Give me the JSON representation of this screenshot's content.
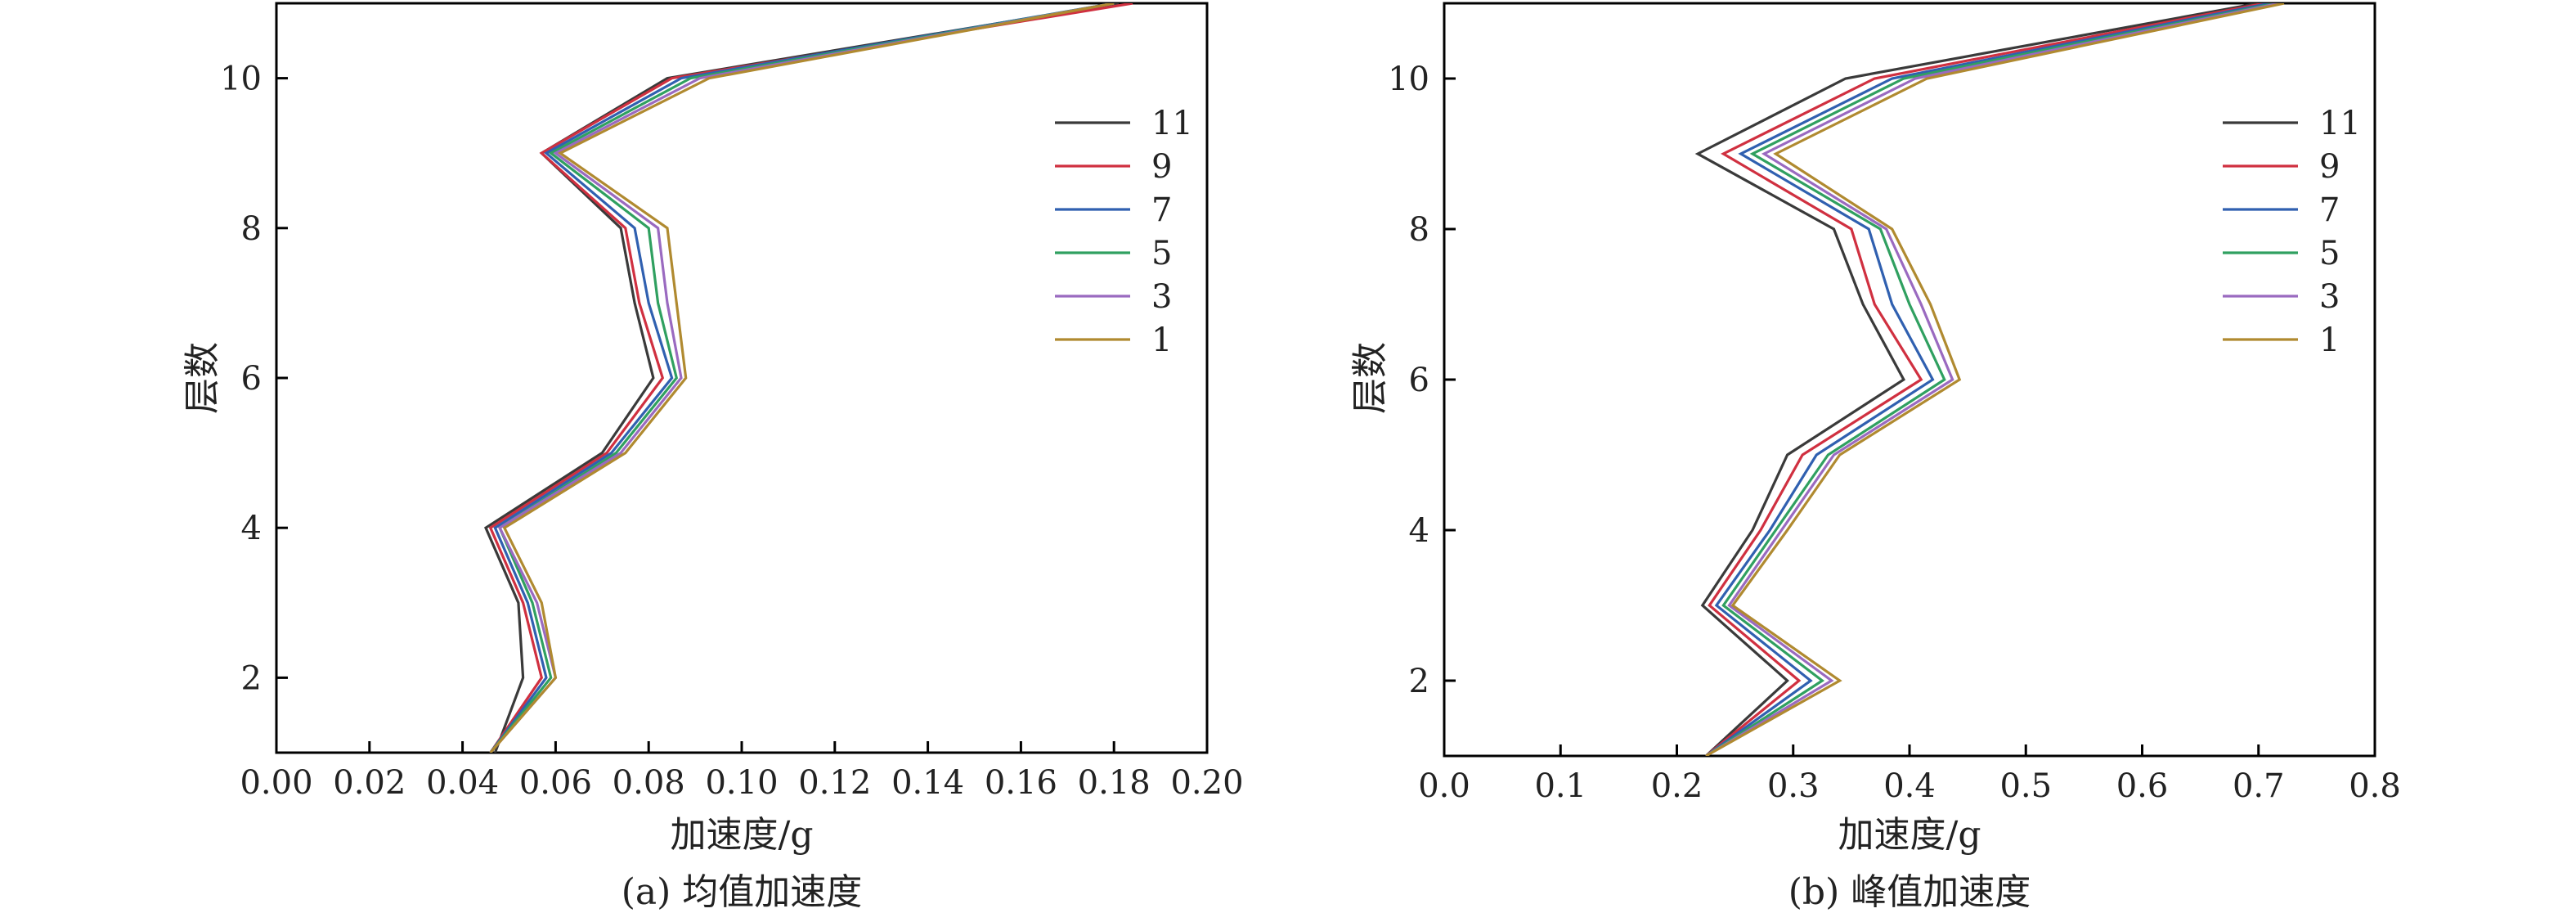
{
  "chart_data": [
    {
      "type": "line",
      "caption": "(a) 均值加速度",
      "xlabel": "加速度/g",
      "ylabel": "层数",
      "xlim": [
        0,
        0.2
      ],
      "ylim": [
        1,
        11
      ],
      "xticks": [
        0.0,
        0.02,
        0.04,
        0.06,
        0.08,
        0.1,
        0.12,
        0.14,
        0.16,
        0.18,
        0.2
      ],
      "yticks": [
        2,
        4,
        6,
        8,
        10
      ],
      "legend_position": "right",
      "floors": [
        1,
        2,
        3,
        4,
        5,
        6,
        7,
        8,
        9,
        10,
        11
      ],
      "series": [
        {
          "name": "11",
          "color": "#3a3a3a",
          "values": [
            0.047,
            0.053,
            0.052,
            0.045,
            0.07,
            0.081,
            0.077,
            0.074,
            0.057,
            0.084,
            0.181
          ]
        },
        {
          "name": "9",
          "color": "#d03040",
          "values": [
            0.046,
            0.057,
            0.053,
            0.046,
            0.071,
            0.083,
            0.078,
            0.075,
            0.057,
            0.085,
            0.184
          ]
        },
        {
          "name": "7",
          "color": "#3060b0",
          "values": [
            0.046,
            0.058,
            0.054,
            0.047,
            0.072,
            0.085,
            0.08,
            0.077,
            0.058,
            0.087,
            0.18
          ]
        },
        {
          "name": "5",
          "color": "#30a060",
          "values": [
            0.046,
            0.059,
            0.055,
            0.048,
            0.073,
            0.086,
            0.082,
            0.08,
            0.059,
            0.089,
            0.18
          ]
        },
        {
          "name": "3",
          "color": "#9a6ac0",
          "values": [
            0.046,
            0.06,
            0.056,
            0.048,
            0.074,
            0.087,
            0.084,
            0.082,
            0.06,
            0.091,
            0.18
          ]
        },
        {
          "name": "1",
          "color": "#b08a30",
          "values": [
            0.046,
            0.06,
            0.057,
            0.049,
            0.075,
            0.088,
            0.086,
            0.084,
            0.061,
            0.093,
            0.18
          ]
        }
      ]
    },
    {
      "type": "line",
      "caption": "(b) 峰值加速度",
      "xlabel": "加速度/g",
      "ylabel": "层数",
      "xlim": [
        0,
        0.8
      ],
      "ylim": [
        1,
        11
      ],
      "xticks": [
        0.0,
        0.1,
        0.2,
        0.3,
        0.4,
        0.5,
        0.6,
        0.7,
        0.8
      ],
      "yticks": [
        2,
        4,
        6,
        8,
        10
      ],
      "legend_position": "right",
      "floors": [
        1,
        2,
        3,
        4,
        5,
        6,
        7,
        8,
        9,
        10,
        11
      ],
      "series": [
        {
          "name": "11",
          "color": "#3a3a3a",
          "values": [
            0.225,
            0.295,
            0.222,
            0.265,
            0.295,
            0.395,
            0.36,
            0.335,
            0.218,
            0.345,
            0.7
          ]
        },
        {
          "name": "9",
          "color": "#d03040",
          "values": [
            0.225,
            0.305,
            0.228,
            0.272,
            0.308,
            0.41,
            0.37,
            0.35,
            0.24,
            0.37,
            0.705
          ]
        },
        {
          "name": "7",
          "color": "#3060b0",
          "values": [
            0.225,
            0.315,
            0.234,
            0.28,
            0.32,
            0.42,
            0.385,
            0.365,
            0.255,
            0.385,
            0.71
          ]
        },
        {
          "name": "5",
          "color": "#30a060",
          "values": [
            0.225,
            0.325,
            0.24,
            0.285,
            0.33,
            0.43,
            0.4,
            0.375,
            0.265,
            0.395,
            0.715
          ]
        },
        {
          "name": "3",
          "color": "#9a6ac0",
          "values": [
            0.225,
            0.333,
            0.245,
            0.29,
            0.335,
            0.437,
            0.41,
            0.38,
            0.275,
            0.405,
            0.718
          ]
        },
        {
          "name": "1",
          "color": "#b08a30",
          "values": [
            0.225,
            0.34,
            0.248,
            0.295,
            0.34,
            0.443,
            0.418,
            0.385,
            0.285,
            0.415,
            0.722
          ]
        }
      ]
    }
  ]
}
